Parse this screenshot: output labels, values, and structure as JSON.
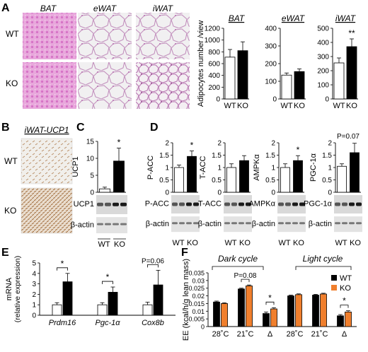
{
  "colors": {
    "wt": "#ffffff",
    "ko_black": "#000000",
    "ko_orange": "#f07f2d",
    "he_pink": "#e6a9dc"
  },
  "panelA": {
    "letter": "A",
    "image_titles": [
      "BAT",
      "eWAT",
      "iWAT"
    ],
    "row_labels": [
      "WT",
      "KO"
    ]
  },
  "panelB": {
    "letter": "B",
    "title": "iWAT-UCP1",
    "row_labels": [
      "WT",
      "KO"
    ]
  },
  "panelC": {
    "letter": "C"
  },
  "panelD": {
    "letter": "D"
  },
  "panelE": {
    "letter": "E"
  },
  "panelF": {
    "letter": "F",
    "groups": [
      "Dark cycle",
      "Light cycle"
    ],
    "legend": [
      "WT",
      "KO"
    ]
  },
  "chart_data": [
    {
      "id": "A-BAT",
      "type": "bar",
      "title": "BAT",
      "ylabel": "Adipocytes number /view",
      "categories": [
        "WT",
        "KO"
      ],
      "values": [
        710,
        820
      ],
      "errors": [
        130,
        150
      ],
      "ylim": [
        0,
        1200
      ],
      "yticks": [
        0,
        200,
        400,
        600,
        800,
        1000,
        1200
      ],
      "fills": [
        "#ffffff",
        "#000000"
      ],
      "sig": [
        null
      ]
    },
    {
      "id": "A-eWAT",
      "type": "bar",
      "title": "eWAT",
      "categories": [
        "WT",
        "KO"
      ],
      "values": [
        135,
        155
      ],
      "errors": [
        12,
        15
      ],
      "ylim": [
        0,
        400
      ],
      "yticks": [
        0,
        100,
        200,
        300,
        400
      ],
      "fills": [
        "#ffffff",
        "#000000"
      ],
      "sig": [
        null
      ]
    },
    {
      "id": "A-iWAT",
      "type": "bar",
      "title": "iWAT",
      "categories": [
        "WT",
        "KO"
      ],
      "values": [
        255,
        370
      ],
      "errors": [
        35,
        55
      ],
      "ylim": [
        0,
        500
      ],
      "yticks": [
        0,
        100,
        200,
        300,
        400,
        500
      ],
      "fills": [
        "#ffffff",
        "#000000"
      ],
      "sig": [
        "**"
      ]
    },
    {
      "id": "C",
      "type": "bar",
      "ylabel": "UCP1",
      "categories": [
        "WT",
        "KO"
      ],
      "values": [
        1.0,
        9.2
      ],
      "errors": [
        0.5,
        3.8
      ],
      "ylim": [
        0,
        15
      ],
      "yticks": [
        0,
        5,
        10,
        15
      ],
      "fills": [
        "#ffffff",
        "#000000"
      ],
      "sig": [
        "*"
      ],
      "blots": [
        "UCP1",
        "β-actin"
      ],
      "xlabels": [
        "WT",
        "KO"
      ]
    },
    {
      "id": "D-PACC",
      "type": "bar",
      "ylabel": "P-ACC",
      "categories": [
        "WT",
        "KO"
      ],
      "values": [
        1.0,
        1.45
      ],
      "errors": [
        0.1,
        0.22
      ],
      "ylim": [
        0,
        2
      ],
      "yticks": [
        0,
        0.5,
        1,
        1.5,
        2
      ],
      "ytick_labels": [
        "0",
        "0.5",
        "1",
        "1.5",
        "2"
      ],
      "fills": [
        "#ffffff",
        "#000000"
      ],
      "sig": [
        "*"
      ],
      "blots": [
        "P-ACC",
        "β-actin"
      ],
      "xlabels": [
        "WT",
        "KO"
      ]
    },
    {
      "id": "D-TACC",
      "type": "bar",
      "ylabel": "T-ACC",
      "categories": [
        "WT",
        "KO"
      ],
      "values": [
        1.0,
        1.28
      ],
      "errors": [
        0.15,
        0.2
      ],
      "ylim": [
        0,
        2
      ],
      "yticks": [
        0,
        0.5,
        1,
        1.5,
        2
      ],
      "ytick_labels": [
        "0",
        "0.5",
        "1",
        "1.5",
        "2"
      ],
      "fills": [
        "#ffffff",
        "#000000"
      ],
      "sig": [
        null
      ],
      "blots": [
        "T-ACC",
        "β-actin"
      ],
      "xlabels": [
        "WT",
        "KO"
      ]
    },
    {
      "id": "D-AMPK",
      "type": "bar",
      "ylabel": "AMPKα",
      "categories": [
        "WT",
        "KO"
      ],
      "values": [
        1.0,
        1.28
      ],
      "errors": [
        0.15,
        0.2
      ],
      "ylim": [
        0,
        2
      ],
      "yticks": [
        0,
        0.5,
        1,
        1.5,
        2
      ],
      "ytick_labels": [
        "0",
        "0.5",
        "1",
        "1.5",
        "2"
      ],
      "fills": [
        "#ffffff",
        "#000000"
      ],
      "sig": [
        "*"
      ],
      "blots": [
        "AMPKα",
        "β-actin"
      ],
      "xlabels": [
        "WT",
        "KO"
      ]
    },
    {
      "id": "D-PGC",
      "type": "bar",
      "ylabel": "PGC-1α",
      "categories": [
        "WT",
        "KO"
      ],
      "values": [
        1.05,
        1.6
      ],
      "errors": [
        0.1,
        0.38
      ],
      "ylim": [
        0,
        2
      ],
      "yticks": [
        0,
        0.5,
        1,
        1.5,
        2
      ],
      "ytick_labels": [
        "0",
        "0.5",
        "1",
        "1.5",
        "2"
      ],
      "fills": [
        "#ffffff",
        "#000000"
      ],
      "sig": [
        "P=0.07"
      ],
      "blots": [
        "PGC-1α",
        "β-actin"
      ],
      "xlabels": [
        "WT",
        "KO"
      ]
    },
    {
      "id": "E",
      "type": "bar",
      "ylabel": "mRNA",
      "ylabel2": "(relative expression)",
      "categories": [
        "Prdm16",
        "Pgc-1α",
        "Cox8b"
      ],
      "series": [
        {
          "values": [
            1.0,
            1.0,
            1.0
          ],
          "errors": [
            0.2,
            0.2,
            0.25
          ],
          "fill": "#ffffff"
        },
        {
          "values": [
            3.2,
            2.2,
            2.9
          ],
          "errors": [
            0.8,
            0.5,
            1.4
          ],
          "fill": "#000000"
        }
      ],
      "ylim": [
        0,
        5
      ],
      "yticks": [
        0,
        1,
        2,
        3,
        4,
        5
      ],
      "sig": [
        "*",
        "*",
        "P=0.06"
      ]
    },
    {
      "id": "F",
      "type": "bar",
      "ylabel": "EE (kcal/h/g lean mass)",
      "categories": [
        "28˚C",
        "21˚C",
        "Δ",
        "28˚C",
        "21˚C",
        "Δ"
      ],
      "series": [
        {
          "name": "WT",
          "values": [
            0.016,
            0.0245,
            0.0085,
            0.02,
            0.0205,
            0.007
          ],
          "errors": [
            0.0006,
            0.0005,
            0.001,
            0.0005,
            0.0005,
            0.0008
          ],
          "fill": "#000000"
        },
        {
          "name": "KO",
          "values": [
            0.015,
            0.0265,
            0.0115,
            0.0208,
            0.0212,
            0.0095
          ],
          "errors": [
            0.0005,
            0.0006,
            0.0008,
            0.0005,
            0.0005,
            0.0008
          ],
          "fill": "#f07f2d"
        }
      ],
      "ylim": [
        0,
        0.035
      ],
      "yticks": [
        0,
        0.005,
        0.01,
        0.015,
        0.02,
        0.025,
        0.03,
        0.035
      ],
      "ytick_labels": [
        "0",
        "0.005",
        "0.01",
        "0.015",
        "0.02",
        "0.025",
        "0.03",
        "0.035"
      ],
      "sig": [
        null,
        "P=0.08",
        "*",
        null,
        null,
        "*"
      ]
    }
  ]
}
